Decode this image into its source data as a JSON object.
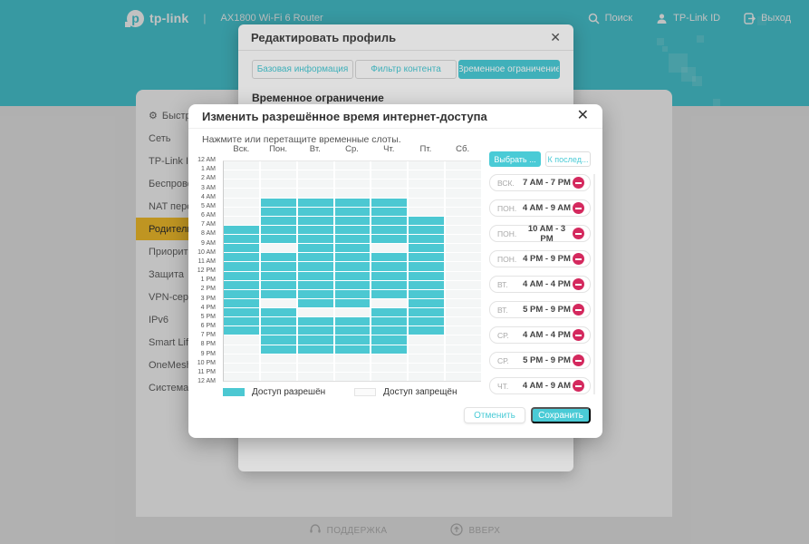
{
  "colors": {
    "teal": "#4ACBD6",
    "cell": "#4CC8D2",
    "danger": "#D4295E",
    "yellow": "#FDC62E"
  },
  "banner": {
    "brand": "tp-link",
    "model": "AX1800 Wi-Fi 6 Router",
    "menu": [
      {
        "label": "Поиск",
        "icon": "search-icon"
      },
      {
        "label": "TP-Link ID",
        "icon": "person-icon"
      },
      {
        "label": "Выход",
        "icon": "logout-icon"
      }
    ]
  },
  "sidebar": {
    "items": [
      {
        "label": "Быстрая н",
        "icon": true
      },
      {
        "label": "Сеть"
      },
      {
        "label": "TP-Link ID"
      },
      {
        "label": "Беспроводно"
      },
      {
        "label": "NAT переадр"
      },
      {
        "label": "Родительский",
        "active": true
      },
      {
        "label": "Приоритезац"
      },
      {
        "label": "Защита"
      },
      {
        "label": "VPN-сервер"
      },
      {
        "label": "IPv6"
      },
      {
        "label": "Smart Life по"
      },
      {
        "label": "OneMesh"
      },
      {
        "label": "Система"
      }
    ]
  },
  "edit_profile_modal": {
    "title": "Редактировать профиль",
    "close": "✕",
    "tabs": [
      {
        "label": "Базовая информация"
      },
      {
        "label": "Фильтр контента"
      },
      {
        "label": "Временное ограничение",
        "active": true
      }
    ],
    "section_heading": "Временное ограничение"
  },
  "time_modal": {
    "title": "Изменить разрешённое время интернет-доступа",
    "close": "✕",
    "instruction": "Нажмите или перетащите временные слоты.",
    "select_button": "Выбрать ...",
    "latest_button": "К послед...",
    "legend_allowed": "Доступ разрешён",
    "legend_denied": "Доступ запрещён",
    "cancel_button": "Отменить",
    "save_button": "Сохранить"
  },
  "slots": [
    {
      "day": "ВСК.",
      "time": "7 AM - 7 PM"
    },
    {
      "day": "ПОН.",
      "time": "4 AM - 9 AM"
    },
    {
      "day": "ПОН.",
      "time": "10 AM - 3 PM"
    },
    {
      "day": "ПОН.",
      "time": "4 PM - 9 PM"
    },
    {
      "day": "ВТ.",
      "time": "4 AM - 4 PM"
    },
    {
      "day": "ВТ.",
      "time": "5 PM - 9 PM"
    },
    {
      "day": "СР.",
      "time": "4 AM - 4 PM"
    },
    {
      "day": "СР.",
      "time": "5 PM - 9 PM"
    },
    {
      "day": "ЧТ.",
      "time": "4 AM - 9 AM"
    }
  ],
  "chart_data": {
    "type": "heatmap",
    "title": "Разрешённое время интернет-доступа",
    "x_labels": [
      "Вск.",
      "Пон.",
      "Вт.",
      "Ср.",
      "Чт.",
      "Пт.",
      "Сб."
    ],
    "y_labels": [
      "12 AM",
      "1 AM",
      "2 AM",
      "3 AM",
      "4 AM",
      "5 AM",
      "6 AM",
      "7 AM",
      "8 AM",
      "9 AM",
      "10 AM",
      "11 AM",
      "12 PM",
      "1 PM",
      "2 PM",
      "3 PM",
      "4 PM",
      "5 PM",
      "6 PM",
      "7 PM",
      "8 PM",
      "9 PM",
      "10 PM",
      "11 PM",
      "12 AM"
    ],
    "allowed_hours": {
      "Вск.": [
        [
          7,
          19
        ]
      ],
      "Пон.": [
        [
          4,
          9
        ],
        [
          10,
          15
        ],
        [
          16,
          21
        ]
      ],
      "Вт.": [
        [
          4,
          16
        ],
        [
          17,
          21
        ]
      ],
      "Ср.": [
        [
          4,
          16
        ],
        [
          17,
          21
        ]
      ],
      "Чт.": [
        [
          4,
          9
        ],
        [
          10,
          15
        ],
        [
          16,
          21
        ]
      ],
      "Пт.": [
        [
          6,
          19
        ]
      ],
      "Сб.": []
    }
  },
  "footer": {
    "support": "ПОДДЕРЖКА",
    "top": "ВВЕРХ"
  }
}
